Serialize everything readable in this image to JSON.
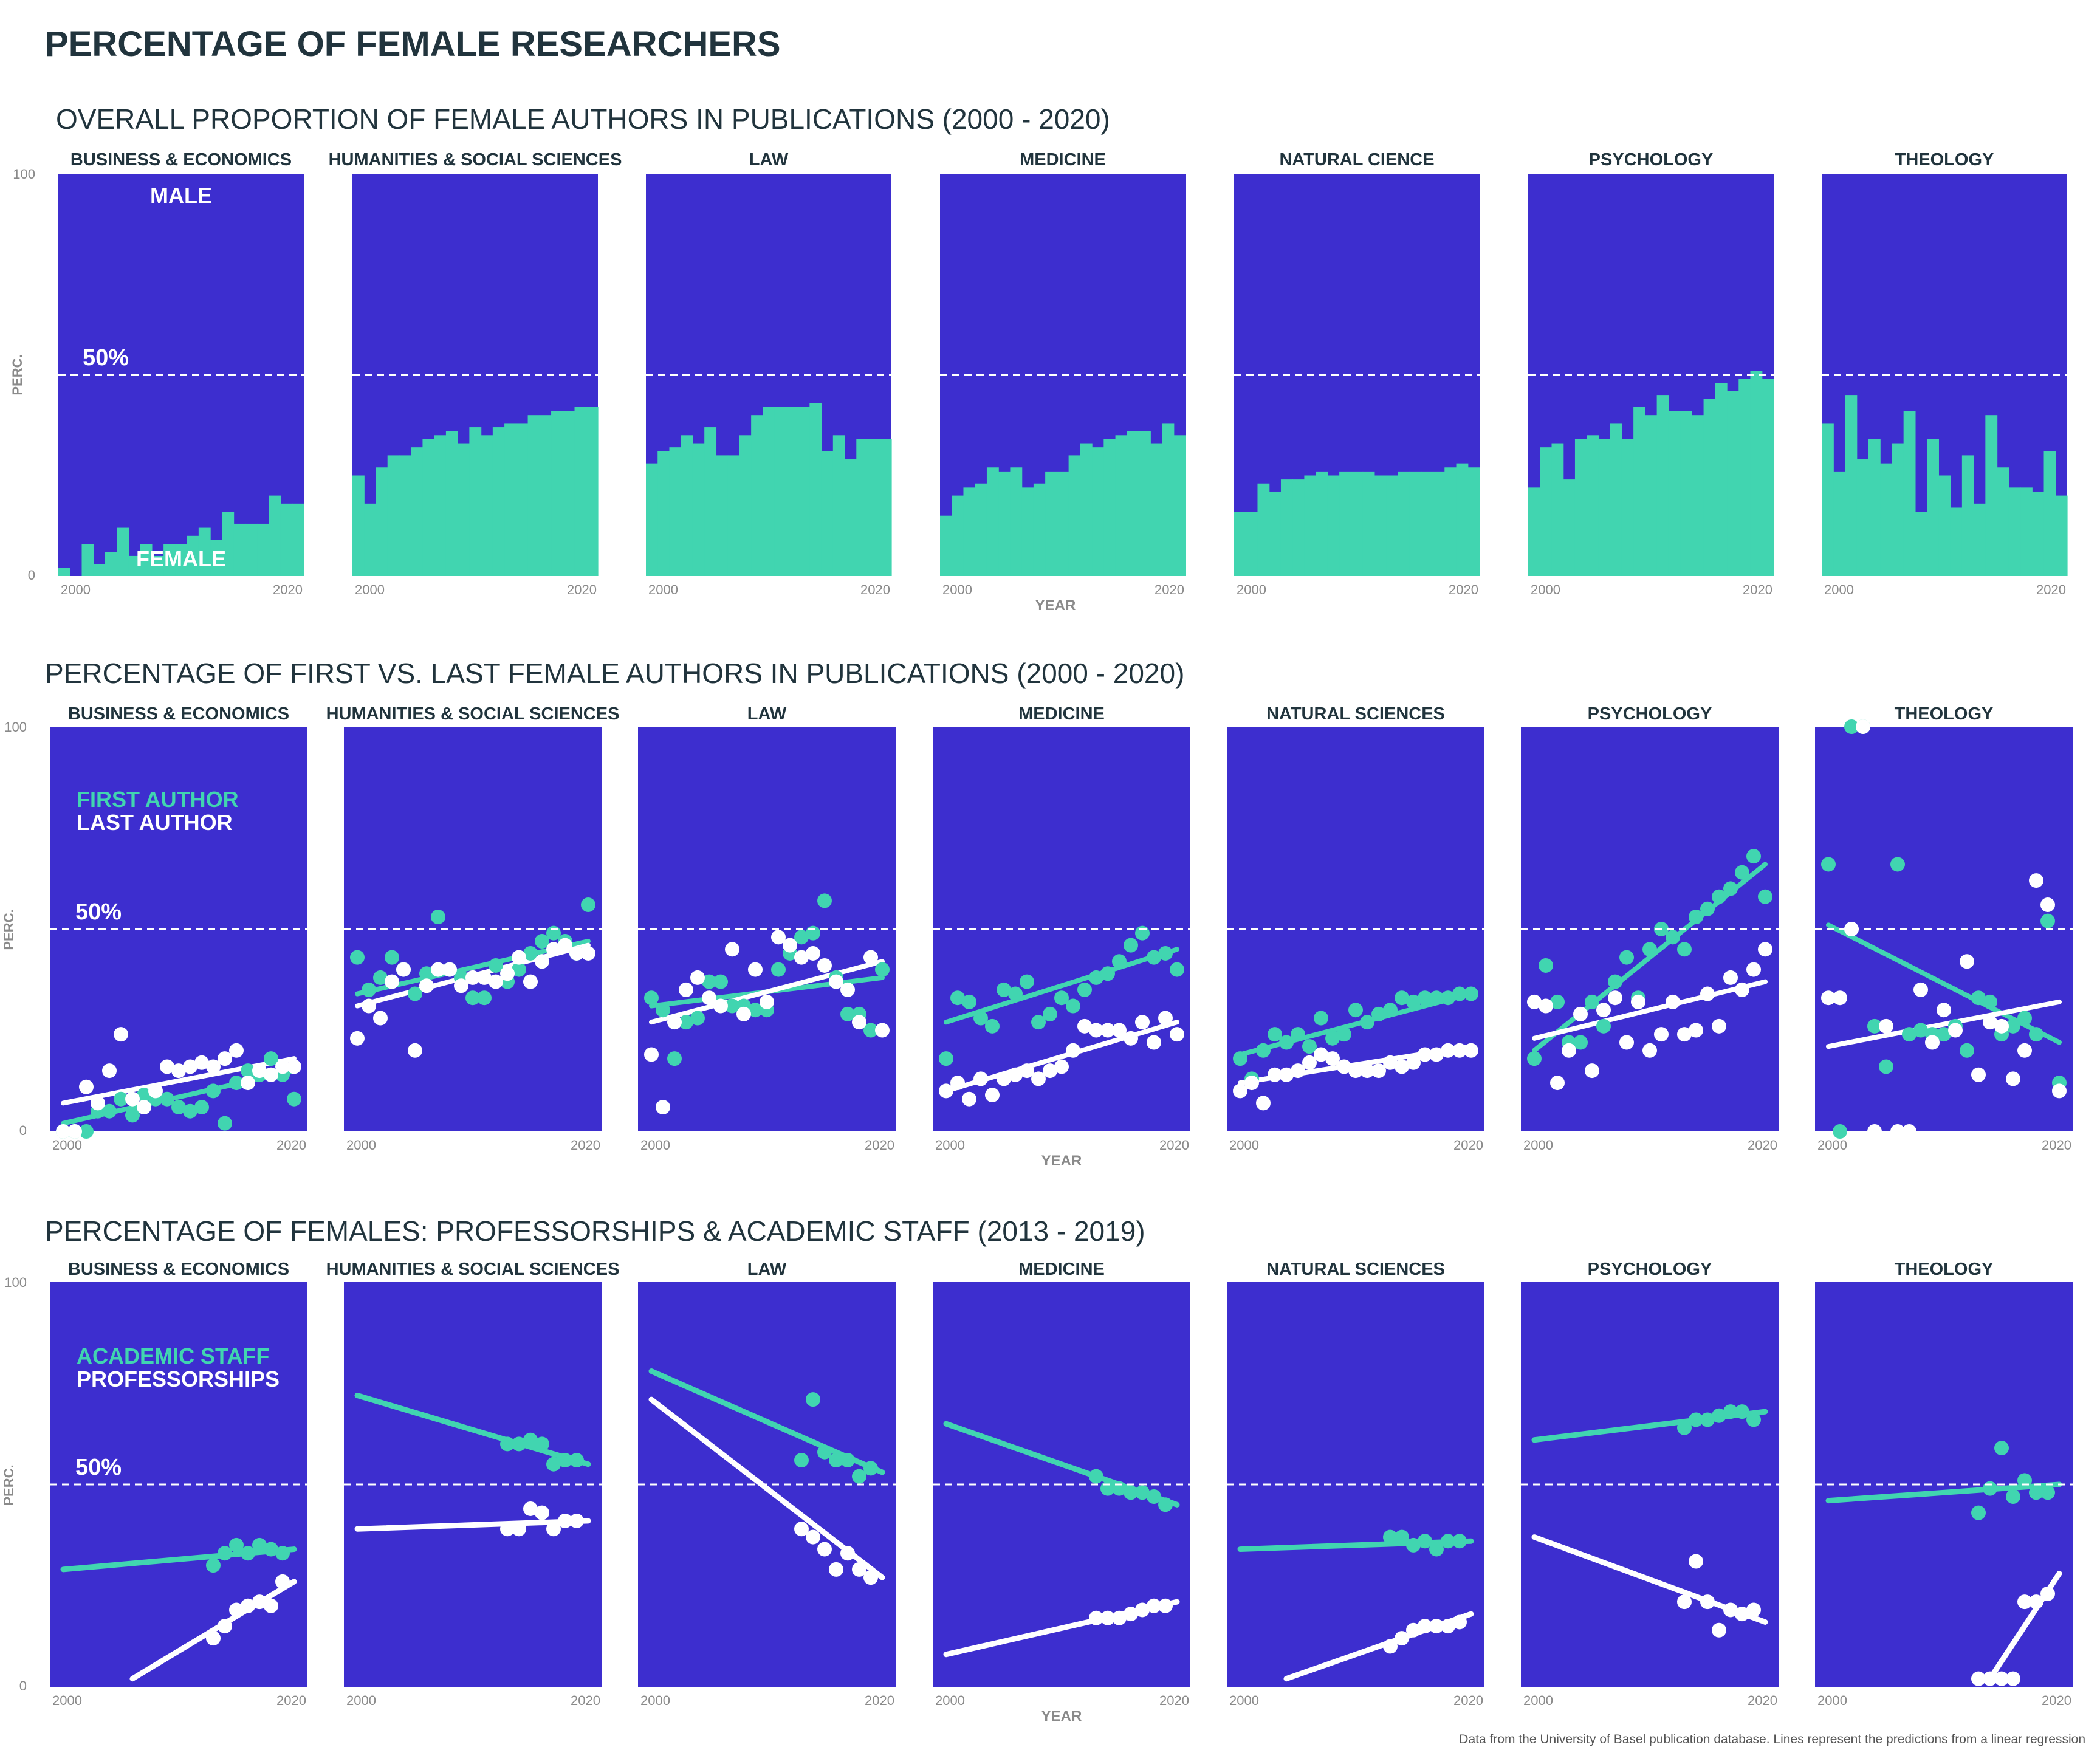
{
  "title": "PERCENTAGE OF FEMALE RESEARCHERS",
  "caption": "Data from the University of Basel publication database. Lines represent the predictions from a linear regression",
  "colors": {
    "panel": "#3d2ecf",
    "female": "#41d5b0",
    "white": "#ffffff",
    "text": "#21343d",
    "muted": "#8a8a8a"
  },
  "chart_data": [
    {
      "id": "section-1",
      "type": "bar",
      "title": "OVERALL PROPORTION OF FEMALE AUTHORS IN PUBLICATIONS (2000 - 2020)",
      "ylabel": "PERC.",
      "xlabel": "YEAR",
      "ylim": [
        0,
        100
      ],
      "yticks": [
        "0",
        "100"
      ],
      "xticks": [
        "2000",
        "2020"
      ],
      "reference_label": "50%",
      "reference_value": 50,
      "labels": {
        "top": "MALE",
        "bottom": "FEMALE"
      },
      "x": [
        2000,
        2001,
        2002,
        2003,
        2004,
        2005,
        2006,
        2007,
        2008,
        2009,
        2010,
        2011,
        2012,
        2013,
        2014,
        2015,
        2016,
        2017,
        2018,
        2019,
        2020
      ],
      "facets": [
        {
          "name": "BUSINESS & ECONOMICS",
          "female": [
            2,
            0,
            8,
            3,
            6,
            12,
            5,
            8,
            5,
            8,
            8,
            10,
            12,
            9,
            16,
            13,
            13,
            13,
            20,
            18,
            18
          ]
        },
        {
          "name": "HUMANITIES & SOCIAL SCIENCES",
          "female": [
            25,
            18,
            27,
            30,
            30,
            32,
            34,
            35,
            36,
            33,
            37,
            35,
            37,
            38,
            38,
            40,
            40,
            41,
            41,
            42,
            42
          ]
        },
        {
          "name": "LAW",
          "female": [
            28,
            31,
            32,
            35,
            33,
            37,
            30,
            30,
            35,
            40,
            42,
            42,
            42,
            42,
            43,
            31,
            35,
            29,
            34,
            34,
            34
          ]
        },
        {
          "name": "MEDICINE",
          "female": [
            15,
            20,
            22,
            23,
            27,
            26,
            27,
            22,
            23,
            26,
            26,
            30,
            33,
            32,
            34,
            35,
            36,
            36,
            33,
            38,
            35
          ]
        },
        {
          "name": "NATURAL CIENCE",
          "female": [
            16,
            16,
            23,
            21,
            24,
            24,
            25,
            26,
            25,
            26,
            26,
            26,
            25,
            25,
            26,
            26,
            26,
            26,
            27,
            28,
            27
          ]
        },
        {
          "name": "PSYCHOLOGY",
          "female": [
            22,
            32,
            33,
            24,
            34,
            35,
            34,
            38,
            34,
            42,
            40,
            45,
            41,
            41,
            40,
            44,
            48,
            46,
            49,
            51,
            49
          ]
        },
        {
          "name": "THEOLOGY",
          "female": [
            38,
            26,
            45,
            29,
            34,
            28,
            33,
            41,
            16,
            34,
            25,
            17,
            30,
            18,
            40,
            27,
            22,
            22,
            21,
            31,
            20
          ]
        }
      ]
    },
    {
      "id": "section-2",
      "type": "scatter",
      "title": "PERCENTAGE OF FIRST VS. LAST FEMALE AUTHORS IN PUBLICATIONS (2000 - 2020)",
      "ylabel": "PERC.",
      "xlabel": "YEAR",
      "ylim": [
        0,
        100
      ],
      "yticks": [
        "0",
        "100"
      ],
      "xticks": [
        "2000",
        "2020"
      ],
      "reference_label": "50%",
      "reference_value": 50,
      "legend": [
        {
          "name": "FIRST AUTHOR",
          "color": "#41d5b0"
        },
        {
          "name": "LAST AUTHOR",
          "color": "#ffffff"
        }
      ],
      "x": [
        2000,
        2001,
        2002,
        2003,
        2004,
        2005,
        2006,
        2007,
        2008,
        2009,
        2010,
        2011,
        2012,
        2013,
        2014,
        2015,
        2016,
        2017,
        2018,
        2019,
        2020
      ],
      "facets": [
        {
          "name": "BUSINESS & ECONOMICS",
          "first": [
            0,
            0,
            0,
            5,
            5,
            8,
            4,
            9,
            8,
            8,
            6,
            5,
            6,
            10,
            2,
            12,
            15,
            14,
            18,
            14,
            8
          ],
          "last": [
            0,
            0,
            11,
            7,
            15,
            24,
            8,
            6,
            10,
            16,
            15,
            16,
            17,
            16,
            18,
            20,
            12,
            15,
            14,
            16,
            16
          ],
          "first_fit": [
            2,
            15
          ],
          "last_fit": [
            7,
            18
          ]
        },
        {
          "name": "HUMANITIES & SOCIAL SCIENCES",
          "first": [
            43,
            35,
            38,
            43,
            40,
            34,
            39,
            53,
            40,
            38,
            33,
            33,
            41,
            37,
            40,
            44,
            47,
            49,
            47,
            44,
            56
          ],
          "last": [
            23,
            31,
            28,
            37,
            40,
            20,
            36,
            40,
            40,
            36,
            38,
            38,
            37,
            39,
            43,
            37,
            42,
            45,
            46,
            44,
            44
          ],
          "first_fit": [
            34,
            47
          ],
          "last_fit": [
            31,
            46
          ]
        },
        {
          "name": "LAW",
          "first": [
            33,
            30,
            18,
            27,
            28,
            37,
            37,
            31,
            31,
            30,
            30,
            40,
            44,
            48,
            49,
            57,
            38,
            29,
            29,
            25,
            40
          ],
          "last": [
            19,
            6,
            27,
            35,
            38,
            33,
            31,
            45,
            29,
            40,
            32,
            48,
            46,
            43,
            44,
            41,
            37,
            35,
            27,
            43,
            25
          ],
          "first_fit": [
            31,
            38
          ],
          "last_fit": [
            27,
            42
          ]
        },
        {
          "name": "MEDICINE",
          "first": [
            18,
            33,
            32,
            28,
            26,
            35,
            34,
            37,
            27,
            29,
            33,
            31,
            35,
            38,
            39,
            42,
            46,
            49,
            43,
            44,
            40
          ],
          "last": [
            10,
            12,
            8,
            13,
            9,
            13,
            14,
            15,
            13,
            15,
            16,
            20,
            26,
            25,
            25,
            25,
            23,
            27,
            22,
            28,
            24
          ],
          "first_fit": [
            27,
            45
          ],
          "last_fit": [
            10,
            27
          ]
        },
        {
          "name": "NATURAL SCIENCES",
          "first": [
            18,
            13,
            20,
            24,
            22,
            24,
            21,
            28,
            23,
            24,
            30,
            27,
            29,
            30,
            33,
            32,
            33,
            33,
            33,
            34,
            34
          ],
          "last": [
            10,
            12,
            7,
            14,
            14,
            15,
            17,
            19,
            18,
            16,
            15,
            15,
            15,
            17,
            16,
            17,
            19,
            19,
            20,
            20,
            20
          ],
          "first_fit": [
            19,
            34
          ],
          "last_fit": [
            12,
            21
          ]
        },
        {
          "name": "PSYCHOLOGY",
          "first": [
            18,
            41,
            32,
            22,
            22,
            32,
            26,
            37,
            43,
            33,
            45,
            50,
            48,
            45,
            53,
            55,
            58,
            60,
            64,
            68,
            58
          ],
          "last": [
            32,
            31,
            12,
            20,
            29,
            15,
            30,
            33,
            22,
            32,
            20,
            24,
            32,
            24,
            25,
            34,
            26,
            38,
            35,
            40,
            45
          ],
          "first_fit": [
            20,
            66
          ],
          "last_fit": [
            23,
            37
          ]
        },
        {
          "name": "THEOLOGY",
          "first": [
            66,
            0,
            100,
            100,
            26,
            16,
            66,
            24,
            25,
            24,
            24,
            26,
            20,
            33,
            32,
            24,
            26,
            28,
            24,
            52,
            12
          ],
          "last": [
            33,
            33,
            50,
            100,
            0,
            26,
            0,
            0,
            35,
            22,
            30,
            25,
            42,
            14,
            27,
            26,
            13,
            20,
            62,
            56,
            10
          ],
          "first_fit": [
            51,
            22
          ],
          "last_fit": [
            21,
            32
          ]
        }
      ]
    },
    {
      "id": "section-3",
      "type": "scatter",
      "title": "PERCENTAGE OF FEMALES: PROFESSORSHIPS & ACADEMIC STAFF (2013 - 2019)",
      "ylabel": "PERC.",
      "xlabel": "YEAR",
      "ylim": [
        0,
        100
      ],
      "yticks": [
        "0",
        "100"
      ],
      "xticks": [
        "2000",
        "2020"
      ],
      "reference_label": "50%",
      "reference_value": 50,
      "legend": [
        {
          "name": "ACADEMIC STAFF",
          "color": "#41d5b0"
        },
        {
          "name": "PROFESSORSHIPS",
          "color": "#ffffff"
        }
      ],
      "x": [
        2013,
        2014,
        2015,
        2016,
        2017,
        2018,
        2019
      ],
      "facets": [
        {
          "name": "BUSINESS & ECONOMICS",
          "staff": [
            30,
            33,
            35,
            33,
            35,
            34,
            33
          ],
          "prof": [
            12,
            15,
            19,
            20,
            21,
            20,
            26
          ],
          "staff_fit": [
            [
              2000,
              29
            ],
            [
              2020,
              34
            ]
          ],
          "prof_fit": [
            [
              2006,
              2
            ],
            [
              2020,
              26
            ]
          ]
        },
        {
          "name": "HUMANITIES & SOCIAL SCIENCES",
          "staff": [
            60,
            60,
            61,
            60,
            55,
            56,
            56
          ],
          "prof": [
            39,
            39,
            44,
            43,
            39,
            41,
            41
          ],
          "staff_fit": [
            [
              2000,
              72
            ],
            [
              2020,
              55
            ]
          ],
          "prof_fit": [
            [
              2000,
              39
            ],
            [
              2020,
              41
            ]
          ]
        },
        {
          "name": "LAW",
          "staff": [
            56,
            71,
            58,
            56,
            56,
            52,
            54
          ],
          "prof": [
            39,
            37,
            34,
            29,
            33,
            29,
            27
          ],
          "staff_fit": [
            [
              2000,
              78
            ],
            [
              2020,
              53
            ]
          ],
          "prof_fit": [
            [
              2000,
              71
            ],
            [
              2020,
              27
            ]
          ]
        },
        {
          "name": "MEDICINE",
          "staff": [
            52,
            49,
            49,
            48,
            48,
            47,
            45
          ],
          "prof": [
            17,
            17,
            17,
            18,
            19,
            20,
            20
          ],
          "staff_fit": [
            [
              2000,
              65
            ],
            [
              2020,
              45
            ]
          ],
          "prof_fit": [
            [
              2000,
              8
            ],
            [
              2020,
              21
            ]
          ]
        },
        {
          "name": "NATURAL SCIENCES",
          "staff": [
            37,
            37,
            35,
            36,
            34,
            36,
            36
          ],
          "prof": [
            10,
            12,
            14,
            15,
            15,
            15,
            16
          ],
          "staff_fit": [
            [
              2000,
              34
            ],
            [
              2020,
              36
            ]
          ],
          "prof_fit": [
            [
              2004,
              2
            ],
            [
              2020,
              18
            ]
          ]
        },
        {
          "name": "PSYCHOLOGY",
          "staff": [
            64,
            66,
            66,
            67,
            68,
            68,
            66
          ],
          "prof": [
            21,
            31,
            21,
            14,
            19,
            18,
            19
          ],
          "staff_fit": [
            [
              2000,
              61
            ],
            [
              2020,
              68
            ]
          ],
          "prof_fit": [
            [
              2000,
              37
            ],
            [
              2020,
              16
            ]
          ]
        },
        {
          "name": "THEOLOGY",
          "staff": [
            43,
            49,
            59,
            47,
            51,
            48,
            48
          ],
          "prof": [
            2,
            2,
            2,
            2,
            21,
            21,
            23
          ],
          "staff_fit": [
            [
              2000,
              46
            ],
            [
              2020,
              50
            ]
          ],
          "prof_fit": [
            [
              2014,
              2
            ],
            [
              2020,
              28
            ]
          ]
        }
      ]
    }
  ]
}
